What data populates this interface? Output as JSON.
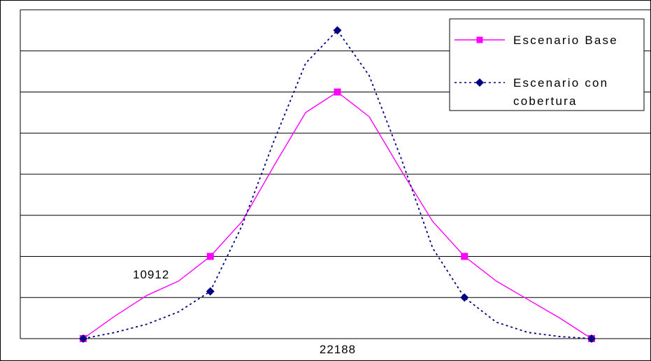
{
  "chart_data": {
    "type": "line",
    "title": "",
    "xlabel": "",
    "ylabel": "",
    "x_tick_labels": [
      "22188"
    ],
    "annotations": [
      "10912"
    ],
    "x": [
      0,
      1,
      2,
      3,
      4
    ],
    "ylim": [
      0,
      8
    ],
    "grid": true,
    "legend_position": "top-right",
    "series": [
      {
        "name": "Escenario Base",
        "color": "#ff00ff",
        "marker": "square",
        "line_style": "solid",
        "points": [
          [
            0,
            0
          ],
          [
            1,
            2
          ],
          [
            2,
            6
          ],
          [
            3,
            2
          ],
          [
            4,
            0
          ]
        ],
        "curve": [
          [
            0,
            0
          ],
          [
            0.25,
            0.55
          ],
          [
            0.5,
            1.05
          ],
          [
            0.75,
            1.4
          ],
          [
            1,
            2
          ],
          [
            1.25,
            2.85
          ],
          [
            1.5,
            4.2
          ],
          [
            1.75,
            5.5
          ],
          [
            2,
            6
          ],
          [
            2.25,
            5.4
          ],
          [
            2.5,
            4.1
          ],
          [
            2.75,
            2.85
          ],
          [
            3,
            2
          ],
          [
            3.25,
            1.4
          ],
          [
            3.5,
            0.95
          ],
          [
            3.75,
            0.5
          ],
          [
            4,
            0
          ]
        ]
      },
      {
        "name": "Escenario con cobertura",
        "color": "#000080",
        "marker": "diamond",
        "line_style": "dotted",
        "points": [
          [
            0,
            0
          ],
          [
            1,
            1.15
          ],
          [
            2,
            7.5
          ],
          [
            3,
            1
          ],
          [
            4,
            0
          ]
        ],
        "curve": [
          [
            0,
            0
          ],
          [
            0.25,
            0.15
          ],
          [
            0.5,
            0.35
          ],
          [
            0.75,
            0.65
          ],
          [
            1,
            1.15
          ],
          [
            1.25,
            2.75
          ],
          [
            1.5,
            4.8
          ],
          [
            1.75,
            6.7
          ],
          [
            2,
            7.5
          ],
          [
            2.25,
            6.4
          ],
          [
            2.5,
            4.4
          ],
          [
            2.75,
            2.2
          ],
          [
            3,
            1
          ],
          [
            3.25,
            0.4
          ],
          [
            3.5,
            0.15
          ],
          [
            3.75,
            0.05
          ],
          [
            4,
            0
          ]
        ]
      }
    ]
  }
}
